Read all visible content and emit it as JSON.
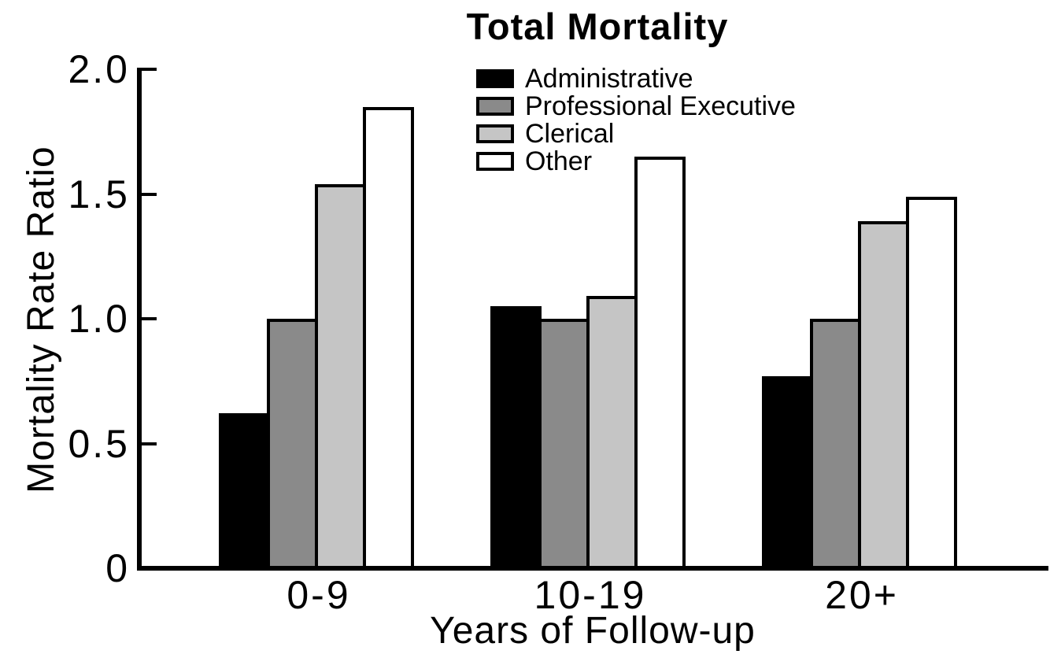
{
  "title": "Total Mortality",
  "y_axis": {
    "label": "Mortality Rate Ratio",
    "tick_labels": [
      "0",
      "0.5",
      "1.0",
      "1.5",
      "2.0"
    ],
    "tick_values": [
      0,
      0.5,
      1.0,
      1.5,
      2.0
    ]
  },
  "x_axis": {
    "label": "Years of Follow-up",
    "categories": [
      "0-9",
      "10-19",
      "20+"
    ]
  },
  "colors": {
    "administrative": "#000000",
    "professional_executive": "#8a8a8a",
    "clerical": "#c5c5c5",
    "other": "#ffffff",
    "axis": "#000000",
    "background": "#ffffff"
  },
  "chart_data": {
    "type": "bar",
    "title": "Total Mortality",
    "xlabel": "Years of Follow-up",
    "ylabel": "Mortality Rate Ratio",
    "categories": [
      "0-9",
      "10-19",
      "20+"
    ],
    "series": [
      {
        "name": "Administrative",
        "color": "#000000",
        "values": [
          0.62,
          1.05,
          0.77
        ]
      },
      {
        "name": "Professional Executive",
        "color": "#8a8a8a",
        "values": [
          1.0,
          1.0,
          1.0
        ]
      },
      {
        "name": "Clerical",
        "color": "#c5c5c5",
        "values": [
          1.54,
          1.09,
          1.39
        ]
      },
      {
        "name": "Other",
        "color": "#ffffff",
        "values": [
          1.85,
          1.65,
          1.49
        ]
      }
    ],
    "ylim": [
      0,
      2.0
    ],
    "yticks": [
      0,
      0.5,
      1.0,
      1.5,
      2.0
    ],
    "grid": false,
    "bar_outline": "#000000",
    "legend_position": "upper center"
  }
}
